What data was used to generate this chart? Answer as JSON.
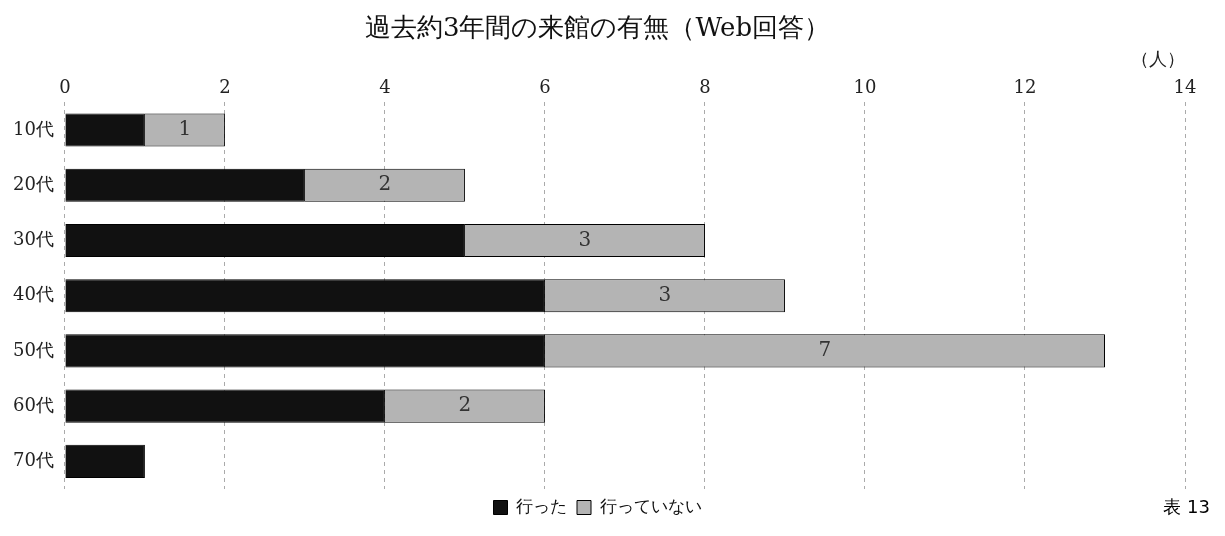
{
  "chart_data": {
    "type": "bar",
    "orientation": "horizontal",
    "stacked": true,
    "title": "過去約3年間の来館の有無（Web回答）",
    "xlabel": "（人）",
    "categories": [
      "10代",
      "20代",
      "30代",
      "40代",
      "50代",
      "60代",
      "70代"
    ],
    "series": [
      {
        "name": "行った",
        "color": "#111111",
        "values": [
          1,
          3,
          5,
          6,
          6,
          4,
          1
        ]
      },
      {
        "name": "行っていない",
        "color": "#b4b4b4",
        "values": [
          1,
          2,
          3,
          3,
          7,
          2,
          null
        ],
        "value_labels": [
          "1",
          "2",
          "3",
          "3",
          "7",
          "2",
          null
        ]
      }
    ],
    "xlim": [
      0,
      14
    ],
    "xticks": [
      0,
      2,
      4,
      6,
      8,
      10,
      12,
      14
    ],
    "grid": "x",
    "legend": "bottom",
    "annotations": [
      "表 13"
    ]
  }
}
